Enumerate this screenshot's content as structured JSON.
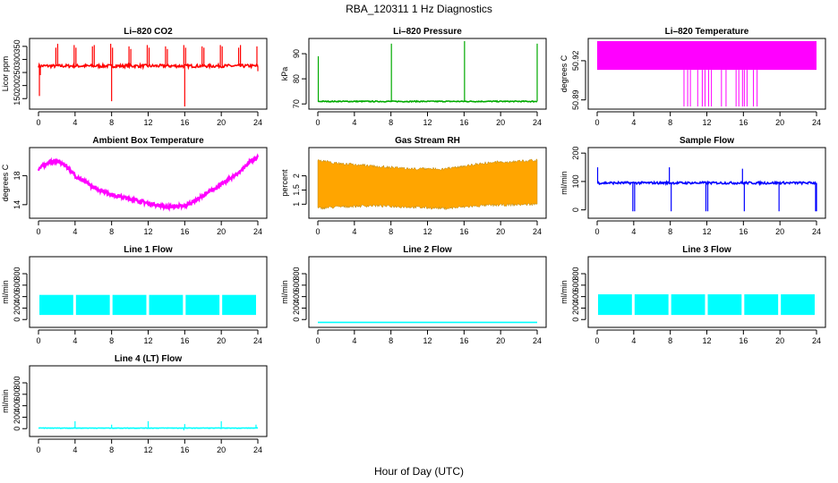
{
  "figure": {
    "title": "RBA_120311  1 Hz Diagnostics",
    "xlabel": "Hour of Day (UTC)"
  },
  "chart_data": [
    {
      "type": "line",
      "title": "Li–820 CO2",
      "ylabel": "Licor ppm",
      "color": "#ff0000",
      "xlim": [
        0,
        24
      ],
      "xticks": [
        0,
        4,
        8,
        12,
        16,
        20,
        24
      ],
      "ylim": [
        120,
        370
      ],
      "yticks": [
        150,
        200,
        250,
        300,
        350
      ],
      "base": 275,
      "noise": 6,
      "spikes": [
        [
          0.1,
          160
        ],
        [
          0.2,
          240
        ],
        [
          1.9,
          345
        ],
        [
          2.1,
          360
        ],
        [
          3.9,
          355
        ],
        [
          4.1,
          345
        ],
        [
          5.9,
          350
        ],
        [
          6.1,
          355
        ],
        [
          7.9,
          360
        ],
        [
          8.0,
          140
        ],
        [
          8.1,
          345
        ],
        [
          9.9,
          350
        ],
        [
          10.1,
          340
        ],
        [
          11.9,
          355
        ],
        [
          12.1,
          345
        ],
        [
          13.9,
          350
        ],
        [
          14.1,
          340
        ],
        [
          15.9,
          355
        ],
        [
          16.0,
          120
        ],
        [
          16.1,
          345
        ],
        [
          17.9,
          350
        ],
        [
          18.1,
          345
        ],
        [
          19.9,
          355
        ],
        [
          20.1,
          350
        ],
        [
          21.9,
          345
        ],
        [
          22.1,
          355
        ],
        [
          23.9,
          350
        ],
        [
          24.0,
          255
        ]
      ]
    },
    {
      "type": "line",
      "title": "Li–820 Pressure",
      "ylabel": "kPa",
      "color": "#00aa00",
      "xlim": [
        0,
        24
      ],
      "xticks": [
        0,
        4,
        8,
        12,
        16,
        20,
        24
      ],
      "ylim": [
        69,
        95
      ],
      "yticks": [
        70,
        80,
        90
      ],
      "base": 71,
      "noise": 0.2,
      "spikes": [
        [
          0.05,
          89
        ],
        [
          8.05,
          94
        ],
        [
          16.05,
          95
        ],
        [
          24.0,
          94
        ]
      ]
    },
    {
      "type": "line",
      "title": "Li–820 Temperature",
      "ylabel": "degrees C",
      "color": "#ff00ff",
      "xlim": [
        0,
        24
      ],
      "xticks": [
        0,
        4,
        8,
        12,
        16,
        20,
        24
      ],
      "ylim": [
        50.885,
        50.935
      ],
      "yticks": [
        50.89,
        50.92
      ],
      "band": [
        50.913,
        50.935
      ],
      "drops": [
        9.5,
        9.9,
        10.2,
        11.0,
        11.5,
        11.8,
        12.2,
        12.5,
        13.6,
        14.1,
        15.2,
        15.5,
        15.9,
        16.1,
        16.4,
        17.1,
        17.5
      ]
    },
    {
      "type": "line",
      "title": "Ambient Box Temperature",
      "ylabel": "degrees C",
      "color": "#ff00ff",
      "xlim": [
        0,
        24
      ],
      "xticks": [
        0,
        4,
        8,
        12,
        16,
        20,
        24
      ],
      "ylim": [
        12.5,
        21.5
      ],
      "yticks": [
        14,
        18
      ],
      "curve": [
        [
          0,
          18.9
        ],
        [
          1,
          19.8
        ],
        [
          2,
          20.0
        ],
        [
          3,
          19.4
        ],
        [
          4,
          18.0
        ],
        [
          6,
          16.4
        ],
        [
          8,
          15.4
        ],
        [
          10,
          14.8
        ],
        [
          12,
          14.2
        ],
        [
          14,
          13.7
        ],
        [
          16,
          13.8
        ],
        [
          18,
          15.2
        ],
        [
          20,
          16.8
        ],
        [
          22,
          18.5
        ],
        [
          23,
          19.8
        ],
        [
          24,
          20.5
        ]
      ],
      "noise": 0.5
    },
    {
      "type": "line",
      "title": "Gas Stream RH",
      "ylabel": "percent",
      "color": "#ffa500",
      "xlim": [
        0,
        24
      ],
      "xticks": [
        0,
        4,
        8,
        12,
        16,
        20,
        24
      ],
      "ylim": [
        0.6,
        2.9
      ],
      "yticks": [
        1.0,
        1.5,
        2.0
      ],
      "envelope": [
        [
          0,
          0.8,
          2.6
        ],
        [
          2,
          0.85,
          2.5
        ],
        [
          6,
          0.9,
          2.4
        ],
        [
          10,
          0.85,
          2.3
        ],
        [
          14,
          0.8,
          2.3
        ],
        [
          18,
          0.9,
          2.5
        ],
        [
          24,
          0.95,
          2.6
        ]
      ]
    },
    {
      "type": "line",
      "title": "Sample Flow",
      "ylabel": "ml/min",
      "color": "#0000ff",
      "xlim": [
        0,
        24
      ],
      "xticks": [
        0,
        4,
        8,
        12,
        16,
        20,
        24
      ],
      "ylim": [
        -20,
        210
      ],
      "yticks": [
        0,
        100,
        200
      ],
      "base": 95,
      "noise": 4,
      "spikes": [
        [
          0.05,
          150
        ],
        [
          3.9,
          -5
        ],
        [
          4.1,
          -5
        ],
        [
          7.9,
          150
        ],
        [
          8.1,
          -5
        ],
        [
          11.9,
          -5
        ],
        [
          12.1,
          -5
        ],
        [
          15.9,
          145
        ],
        [
          16.1,
          -5
        ],
        [
          19.9,
          -5
        ],
        [
          23.9,
          -5
        ],
        [
          24.0,
          -5
        ]
      ]
    },
    {
      "type": "line",
      "title": "Line 1 Flow",
      "ylabel": "ml/min",
      "color": "#00ffff",
      "xlim": [
        0,
        24
      ],
      "xticks": [
        0,
        4,
        8,
        12,
        16,
        20,
        24
      ],
      "ylim": [
        -90,
        1050
      ],
      "yticks": [
        0,
        200,
        400,
        600,
        800
      ],
      "band": [
        80,
        430
      ],
      "gaps": [
        3.9,
        7.9,
        11.9,
        15.9,
        19.9,
        23.9
      ]
    },
    {
      "type": "line",
      "title": "Line 2 Flow",
      "ylabel": "ml/min",
      "color": "#00ffff",
      "xlim": [
        0,
        24
      ],
      "xticks": [
        0,
        4,
        8,
        12,
        16,
        20,
        24
      ],
      "ylim": [
        -90,
        1050
      ],
      "yticks": [
        0,
        200,
        400,
        600,
        800
      ],
      "base": -50,
      "noise": 0
    },
    {
      "type": "line",
      "title": "Line 3 Flow",
      "ylabel": "ml/min",
      "color": "#00ffff",
      "xlim": [
        0,
        24
      ],
      "xticks": [
        0,
        4,
        8,
        12,
        16,
        20,
        24
      ],
      "ylim": [
        -90,
        1050
      ],
      "yticks": [
        0,
        200,
        400,
        600,
        800
      ],
      "band": [
        80,
        440
      ],
      "gaps": [
        3.9,
        7.9,
        11.9,
        15.9,
        19.9,
        23.9
      ]
    },
    {
      "type": "line",
      "title": "Line 4 (LT) Flow",
      "ylabel": "ml/min",
      "color": "#00ffff",
      "xlim": [
        0,
        24
      ],
      "xticks": [
        0,
        4,
        8,
        12,
        16,
        20,
        24
      ],
      "ylim": [
        -90,
        1050
      ],
      "yticks": [
        0,
        200,
        400,
        600,
        800
      ],
      "base": 10,
      "noise": 4,
      "spikes": [
        [
          4.0,
          130
        ],
        [
          8.0,
          70
        ],
        [
          12.0,
          130
        ],
        [
          15.9,
          -30
        ],
        [
          16.0,
          80
        ],
        [
          20.0,
          130
        ],
        [
          23.8,
          70
        ]
      ]
    }
  ]
}
